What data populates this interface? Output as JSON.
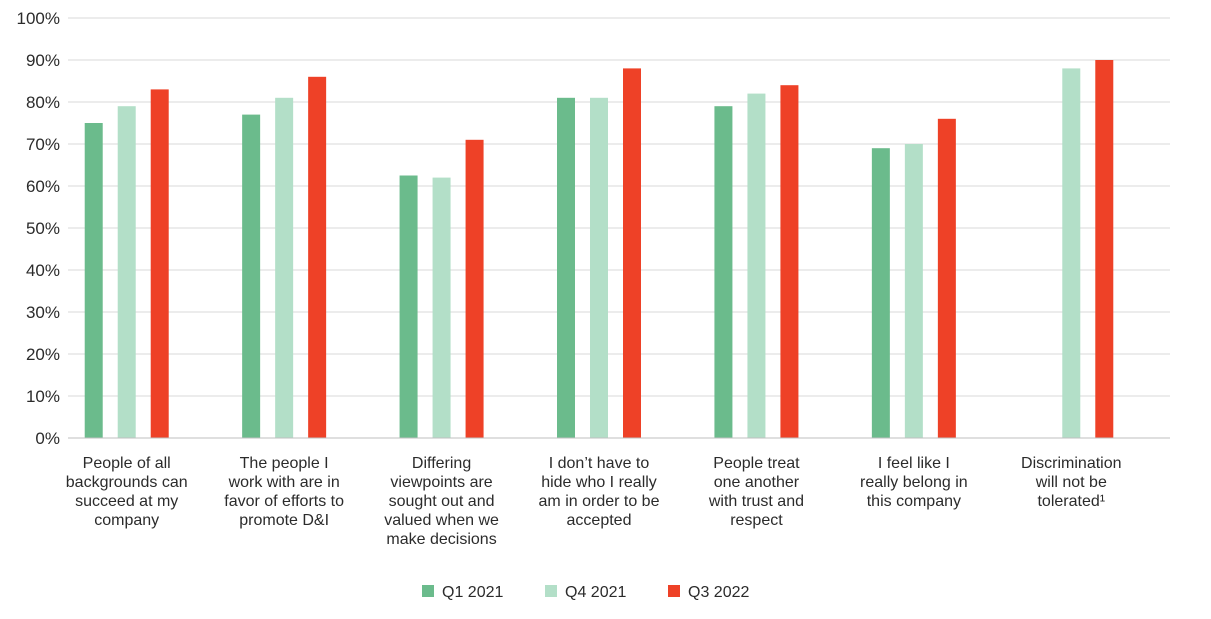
{
  "chart_data": {
    "type": "bar",
    "title": "",
    "xlabel": "",
    "ylabel": "",
    "ylim": [
      0,
      100
    ],
    "y_ticks": [
      "0%",
      "10%",
      "20%",
      "30%",
      "40%",
      "50%",
      "60%",
      "70%",
      "80%",
      "90%",
      "100%"
    ],
    "grid": true,
    "legend_position": "bottom",
    "categories": [
      [
        "People of all",
        "backgrounds can",
        "succeed at my",
        "company"
      ],
      [
        "The people I",
        "work with are in",
        "favor of efforts to",
        "promote D&I"
      ],
      [
        "Differing",
        "viewpoints are",
        "sought out and",
        "valued when we",
        "make decisions"
      ],
      [
        "I don’t have to",
        "hide who I really",
        "am in order to be",
        "accepted"
      ],
      [
        "People treat",
        "one another",
        "with trust and",
        "respect"
      ],
      [
        "I feel like I",
        "really belong in",
        "this company"
      ],
      [
        "Discrimination",
        "will not be",
        "tolerated¹"
      ]
    ],
    "series": [
      {
        "name": "Q1 2021",
        "color": "#6bbb8c",
        "values": [
          75,
          77,
          62.5,
          81,
          79,
          69,
          null
        ]
      },
      {
        "name": "Q4 2021",
        "color": "#b3dfc8",
        "values": [
          79,
          81,
          62,
          81,
          82,
          70,
          88
        ]
      },
      {
        "name": "Q3 2022",
        "color": "#ee4127",
        "values": [
          83,
          86,
          71,
          88,
          84,
          76,
          90
        ]
      }
    ]
  }
}
